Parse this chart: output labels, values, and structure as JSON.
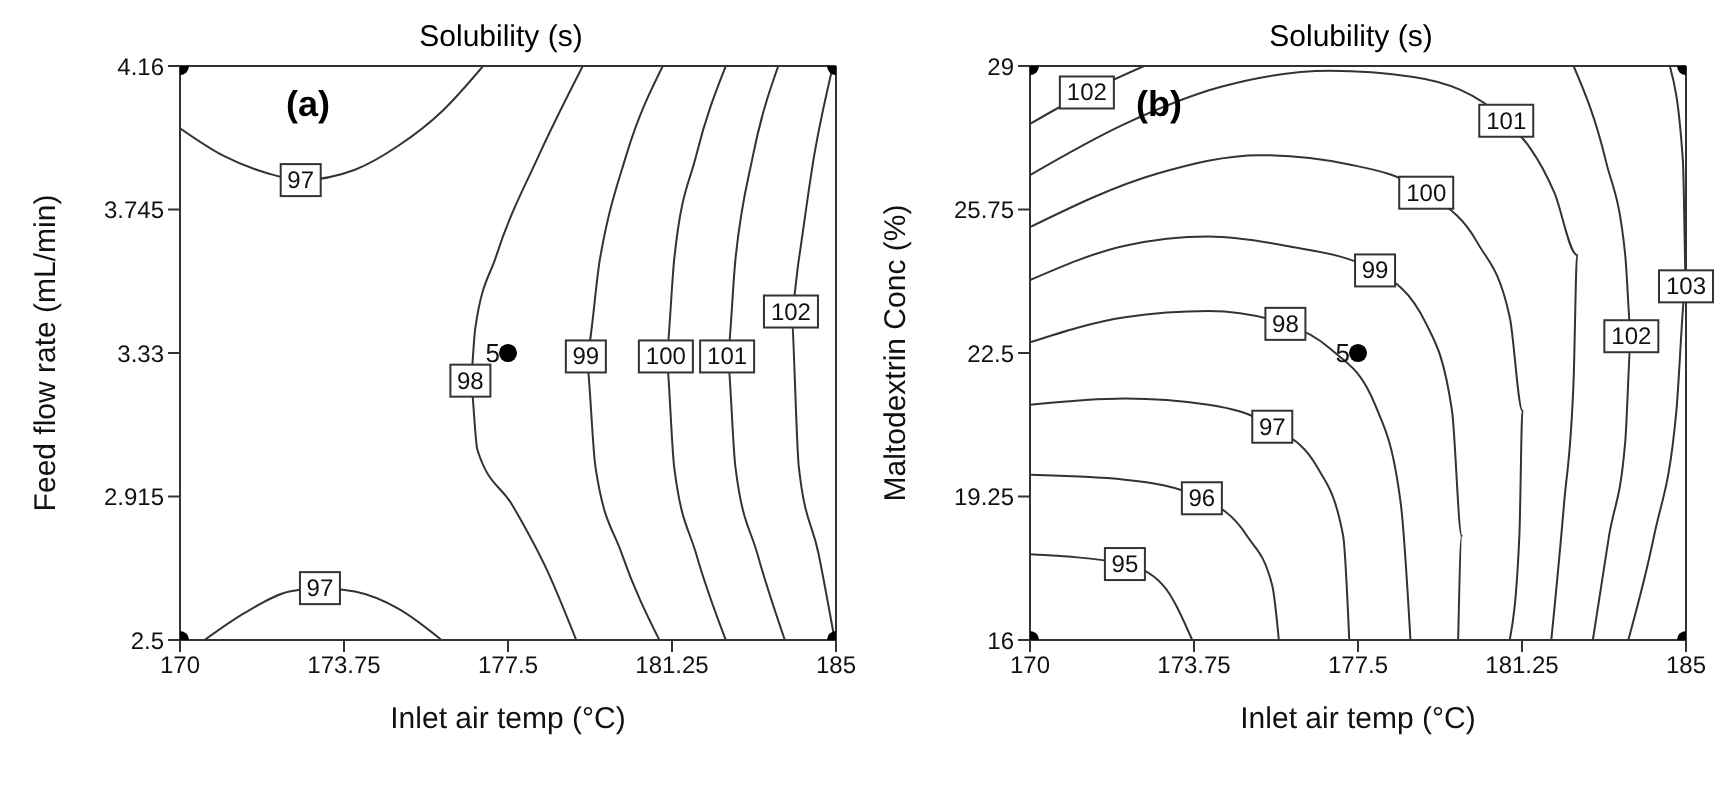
{
  "chart_data": [
    {
      "type": "line",
      "title": "Solubility (s)",
      "xlabel": "Inlet air temp (°C)",
      "ylabel": "Feed flow rate (mL/min)",
      "xlim": [
        170,
        185
      ],
      "ylim": [
        2.5,
        4.16
      ],
      "xticks": [
        170,
        173.75,
        177.5,
        181.25,
        185
      ],
      "yticks": [
        2.5,
        2.915,
        3.33,
        3.745,
        4.16
      ],
      "marker": "none",
      "line_style": "solid",
      "annotations": [
        "(a)",
        {
          "text": "5",
          "x": 177.5,
          "y": 3.33
        }
      ],
      "series": [
        {
          "name": "97",
          "color": "#333333",
          "x": [
            170,
            171,
            172,
            172.76,
            174,
            175,
            176,
            176.93
          ],
          "values": [
            3.98,
            3.9,
            3.85,
            3.83,
            3.86,
            3.93,
            4.03,
            4.16
          ]
        },
        {
          "name": "97",
          "color": "#333333",
          "x": [
            170.56,
            171.5,
            172.5,
            173.2,
            174,
            175,
            175.98
          ],
          "values": [
            2.5,
            2.58,
            2.64,
            2.65,
            2.64,
            2.59,
            2.5
          ]
        },
        {
          "name": "98",
          "color": "#333333",
          "x": [
            179.21,
            178.2,
            177.23,
            176.75,
            176.64,
            176.8,
            177.6,
            178.4,
            179.06
          ],
          "values": [
            4.16,
            3.9,
            3.61,
            3.4,
            3.25,
            3.05,
            2.89,
            2.7,
            2.5
          ]
        },
        {
          "name": "99",
          "color": "#333333",
          "x": [
            181.04,
            180.2,
            179.6,
            179.28,
            179.5,
            180.1,
            180.96
          ],
          "values": [
            4.16,
            3.9,
            3.6,
            3.32,
            3.0,
            2.75,
            2.5
          ]
        },
        {
          "name": "100",
          "color": "#333333",
          "x": [
            182.48,
            181.8,
            181.3,
            181.11,
            181.3,
            181.8,
            182.48
          ],
          "values": [
            4.16,
            3.9,
            3.6,
            3.32,
            3.0,
            2.75,
            2.5
          ]
        },
        {
          "name": "101",
          "color": "#333333",
          "x": [
            183.68,
            183.1,
            182.7,
            182.51,
            182.7,
            183.2,
            183.83
          ],
          "values": [
            4.16,
            3.9,
            3.6,
            3.32,
            3.0,
            2.75,
            2.5
          ]
        },
        {
          "name": "102",
          "color": "#333333",
          "x": [
            184.93,
            184.5,
            184.15,
            183.97,
            184.15,
            184.6,
            184.97
          ],
          "values": [
            4.16,
            3.9,
            3.6,
            3.45,
            3.0,
            2.75,
            2.5
          ]
        },
        {
          "type": "scatter",
          "color": "#000000",
          "marker": "circle",
          "x": [
            170,
            185,
            170,
            185,
            177.5
          ],
          "values": [
            2.5,
            2.5,
            4.16,
            4.16,
            3.33
          ]
        }
      ]
    },
    {
      "type": "line",
      "title": "Solubility (s)",
      "xlabel": "Inlet air temp (°C)",
      "ylabel": "Maltodextrin Conc (%)",
      "xlim": [
        170,
        185
      ],
      "ylim": [
        16,
        29
      ],
      "xticks": [
        170,
        173.75,
        177.5,
        181.25,
        185
      ],
      "yticks": [
        16,
        19.25,
        22.5,
        25.75,
        29
      ],
      "marker": "none",
      "line_style": "solid",
      "annotations": [
        "(b)",
        {
          "text": "5",
          "x": 177.5,
          "y": 22.5
        }
      ],
      "series": [
        {
          "name": "102",
          "color": "#333333",
          "x": [
            170,
            171.3,
            172.61
          ],
          "values": [
            27.69,
            28.4,
            29
          ]
        },
        {
          "name": "101",
          "color": "#333333",
          "x": [
            170,
            172.17,
            174.37,
            176.86,
            178.77,
            180.89,
            181.99,
            182.51,
            182.43,
            182.21,
            181.92
          ],
          "values": [
            26.53,
            27.69,
            28.53,
            28.89,
            28.75,
            27.76,
            26.13,
            24.72,
            21.89,
            19.07,
            16
          ]
        },
        {
          "name": "100",
          "color": "#333333",
          "x": [
            170,
            172.9,
            175.25,
            177.3,
            179.06,
            180.23,
            180.97,
            181.26,
            181.19,
            180.97
          ],
          "values": [
            25.35,
            26.56,
            26.98,
            26.77,
            26.13,
            25.0,
            23.31,
            21.19,
            18.36,
            16
          ]
        },
        {
          "name": "99",
          "color": "#333333",
          "x": [
            170,
            172.17,
            174.08,
            175.84,
            177.89,
            179.06,
            179.65,
            179.87,
            179.79
          ],
          "values": [
            24.15,
            24.93,
            25.14,
            24.93,
            24.37,
            23.16,
            21.19,
            18.36,
            16
          ]
        },
        {
          "name": "98",
          "color": "#333333",
          "x": [
            170,
            172.17,
            174.08,
            175.84,
            176.86,
            177.89,
            178.48,
            178.7
          ],
          "values": [
            22.74,
            23.31,
            23.45,
            23.16,
            22.6,
            21.33,
            19.07,
            16
          ]
        },
        {
          "name": "97",
          "color": "#333333",
          "x": [
            170,
            172.17,
            174.08,
            175.54,
            176.57,
            177.16,
            177.3
          ],
          "values": [
            21.33,
            21.47,
            21.33,
            20.83,
            19.91,
            18.36,
            16
          ]
        },
        {
          "name": "96",
          "color": "#333333",
          "x": [
            170,
            172.17,
            173.93,
            174.96,
            175.54,
            175.69
          ],
          "values": [
            19.74,
            19.63,
            19.21,
            18.36,
            17.23,
            16
          ]
        },
        {
          "name": "95",
          "color": "#333333",
          "x": [
            170,
            172.17,
            173.05,
            173.71
          ],
          "values": [
            17.94,
            17.72,
            17.23,
            16
          ]
        },
        {
          "name": "102",
          "color": "#333333",
          "x": [
            182.43,
            183.17,
            183.61,
            183.75,
            183.61,
            183.24,
            182.87
          ],
          "values": [
            29,
            26.84,
            24.72,
            22.88,
            20.48,
            18.36,
            16
          ]
        },
        {
          "name": "103",
          "color": "#333333",
          "x": [
            184.63,
            184.93,
            185,
            184.78,
            184.27,
            183.68
          ],
          "values": [
            29,
            26.84,
            24.01,
            21.19,
            18.36,
            16
          ]
        },
        {
          "type": "scatter",
          "color": "#000000",
          "marker": "circle",
          "x": [
            170,
            185,
            170,
            185,
            177.5
          ],
          "values": [
            16,
            16,
            29,
            29,
            22.5
          ]
        }
      ]
    }
  ]
}
